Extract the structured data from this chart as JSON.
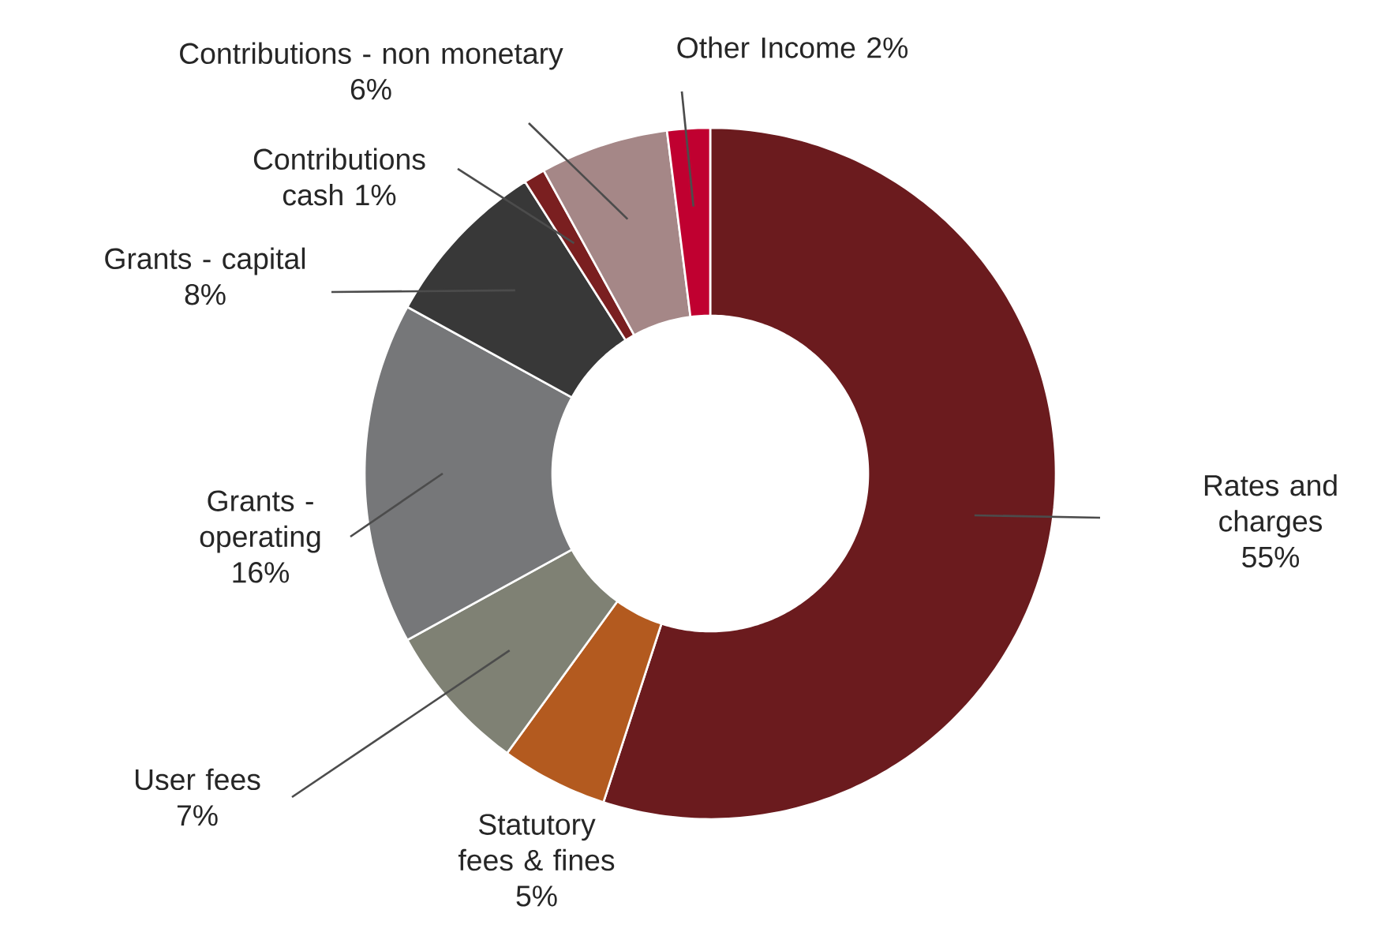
{
  "chart_data": {
    "type": "donut",
    "categories": [
      "Rates and charges",
      "Statutory fees & fines",
      "User fees",
      "Grants - operating",
      "Grants - capital",
      "Contributions cash",
      "Contributions - non monetary",
      "Other Income"
    ],
    "values": [
      55,
      5,
      7,
      16,
      8,
      1,
      6,
      2
    ],
    "value_labels": [
      "55%",
      "5%",
      "7%",
      "16%",
      "8%",
      "1%",
      "6%",
      "2%"
    ],
    "colors": [
      "#6b1b1e",
      "#b35a1f",
      "#7f8174",
      "#767779",
      "#383838",
      "#7a1f20",
      "#a58787",
      "#c00030"
    ]
  }
}
